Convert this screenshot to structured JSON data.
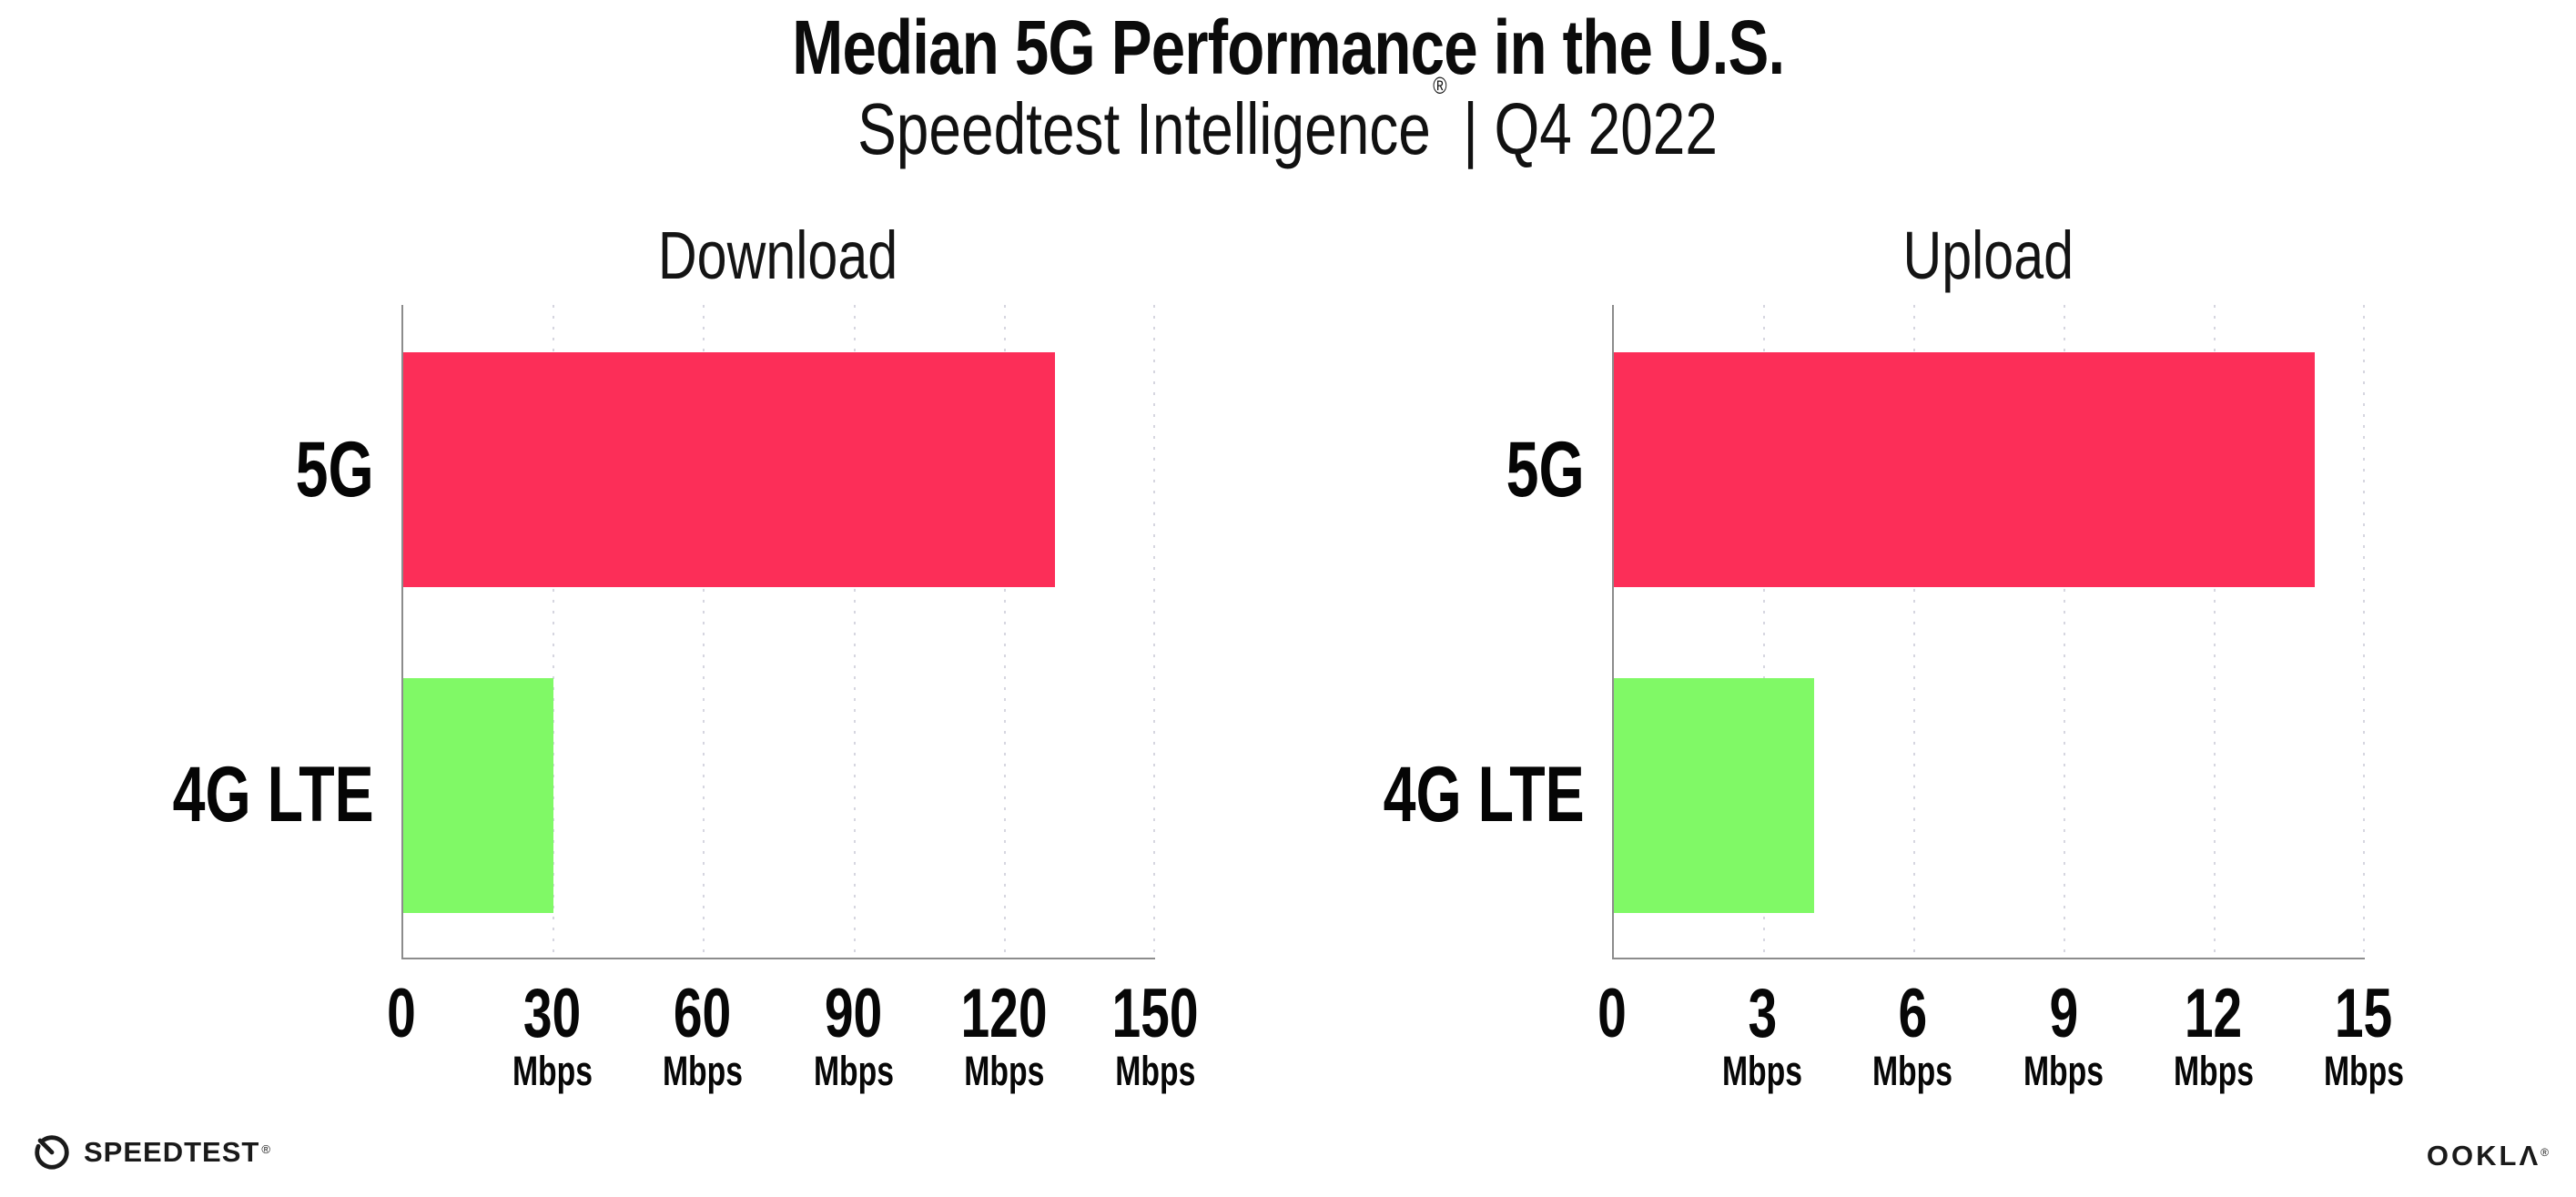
{
  "header": {
    "title": "Median 5G Performance in the U.S.",
    "subtitle_brand": "Speedtest Intelligence",
    "subtitle_reg": "®",
    "subtitle_separator": "|",
    "subtitle_period": "Q4 2022"
  },
  "chart_data": [
    {
      "type": "bar",
      "orientation": "horizontal",
      "title": "Download",
      "categories": [
        "5G",
        "4G LTE"
      ],
      "values": [
        130,
        30
      ],
      "xlim": [
        0,
        150
      ],
      "xticks": [
        0,
        30,
        60,
        90,
        120,
        150
      ],
      "unit_label": "Mbps",
      "bar_colors": [
        "#fc2e58",
        "#80f966"
      ],
      "gridlines": "vertical-dotted",
      "legend": "none"
    },
    {
      "type": "bar",
      "orientation": "horizontal",
      "title": "Upload",
      "categories": [
        "5G",
        "4G LTE"
      ],
      "values": [
        14,
        4
      ],
      "xlim": [
        0,
        15
      ],
      "xticks": [
        0,
        3,
        6,
        9,
        12,
        15
      ],
      "unit_label": "Mbps",
      "bar_colors": [
        "#fc2e58",
        "#80f966"
      ],
      "gridlines": "vertical-dotted",
      "legend": "none"
    }
  ],
  "colors": {
    "bar_5g": "#fc2e58",
    "bar_4g_lte": "#80f966",
    "axis": "#8c8c8c",
    "gridline": "#d6d6e0",
    "text": "#0b0b0b"
  },
  "footer": {
    "speedtest_logo_text": "SPEEDTEST",
    "speedtest_trademark": "®",
    "ookla_logo_text": "OOKLΛ",
    "ookla_trademark": "®"
  }
}
